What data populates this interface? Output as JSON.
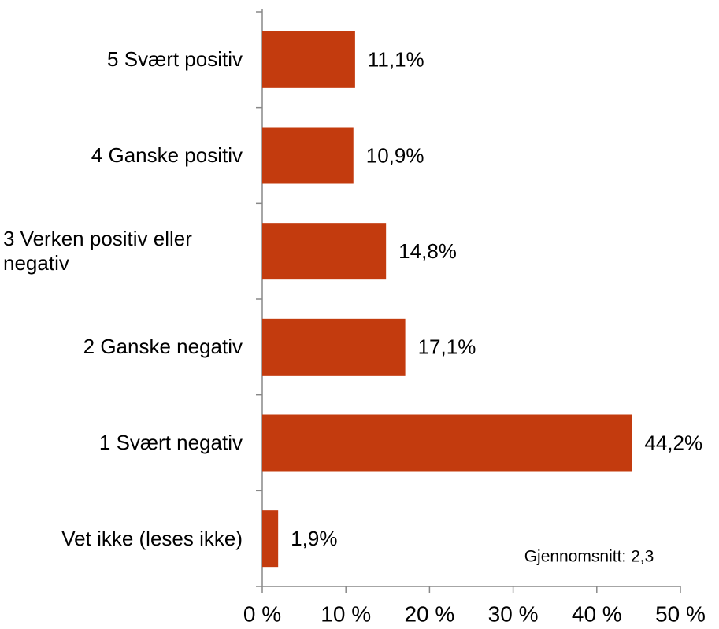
{
  "chart_data": {
    "type": "bar",
    "orientation": "horizontal",
    "categories": [
      "5 Svært positiv",
      "4 Ganske positiv",
      "3 Verken positiv eller negativ",
      "2 Ganske negativ",
      "1 Svært negativ",
      "Vet ikke (leses ikke)"
    ],
    "values": [
      11.1,
      10.9,
      14.8,
      17.1,
      44.2,
      1.9
    ],
    "value_labels": [
      "11,1%",
      "10,9%",
      "14,8%",
      "17,1%",
      "44,2%",
      "1,9%"
    ],
    "color": "#c33b0e",
    "xlim": [
      0,
      50
    ],
    "xticks": [
      {
        "value": 0,
        "label": "0 %"
      },
      {
        "value": 10,
        "label": "10 %"
      },
      {
        "value": 20,
        "label": "20 %"
      },
      {
        "value": 30,
        "label": "30 %"
      },
      {
        "value": 40,
        "label": "40 %"
      },
      {
        "value": 50,
        "label": "50 %"
      }
    ],
    "grid": false,
    "annotation": "Gjennomsnitt: 2,3"
  }
}
